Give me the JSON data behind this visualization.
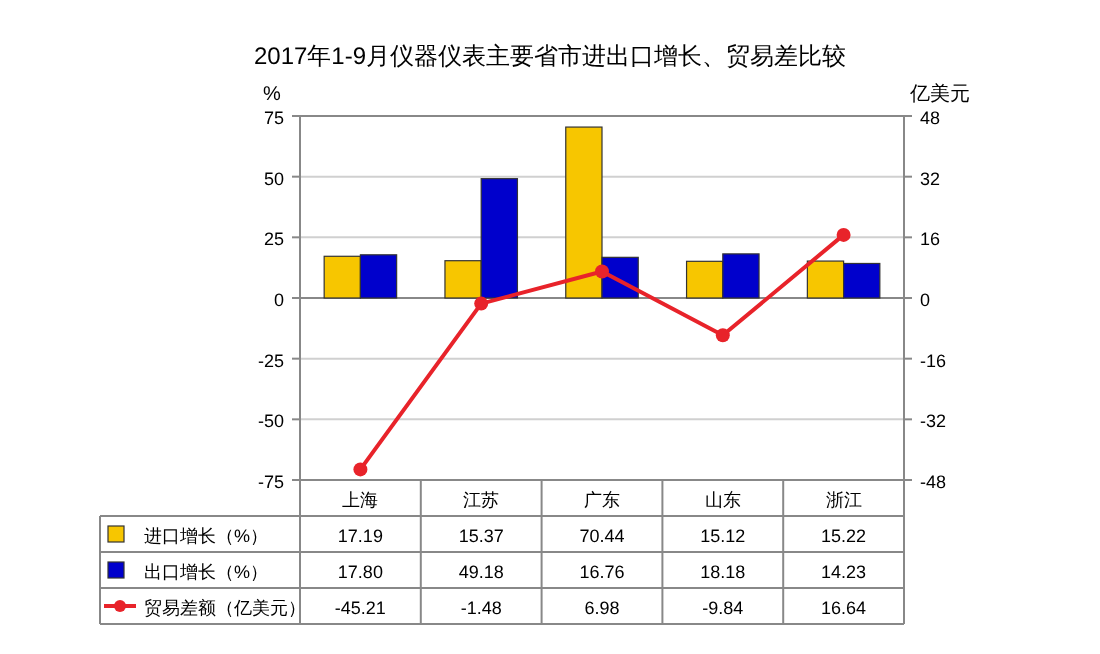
{
  "chart_data": {
    "type": "bar",
    "title": "2017年1-9月仪器仪表主要省市进出口增长、贸易差比较",
    "ylabel": "%",
    "y2label": "亿美元",
    "categories": [
      "上海",
      "江苏",
      "广东",
      "山东",
      "浙江"
    ],
    "series": [
      {
        "name": "进口增长（%）",
        "color": "#f7c600",
        "values": [
          17.19,
          15.37,
          70.44,
          15.12,
          15.22
        ],
        "value_labels": [
          "17.19",
          "15.37",
          "70.44",
          "15.12",
          "15.22"
        ]
      },
      {
        "name": "出口增长（%）",
        "color": "#0000cc",
        "values": [
          17.8,
          49.18,
          16.76,
          18.18,
          14.23
        ],
        "value_labels": [
          "17.80",
          "49.18",
          "16.76",
          "18.18",
          "14.23"
        ]
      },
      {
        "name": "贸易差额（亿美元）",
        "type": "line",
        "axis": "y2",
        "color": "#e8232a",
        "marker": "circle",
        "values": [
          -45.21,
          -1.48,
          6.98,
          -9.84,
          16.64
        ],
        "value_labels": [
          "-45.21",
          "-1.48",
          "6.98",
          "-9.84",
          "16.64"
        ]
      }
    ],
    "ylim": [
      -75,
      75
    ],
    "yticks": [
      -75,
      -50,
      -25,
      0,
      25,
      50,
      75
    ],
    "y2lim": [
      -48,
      48
    ],
    "y2ticks": [
      -48,
      -32,
      -16,
      0,
      16,
      32,
      48
    ],
    "grid": "y",
    "legend": "bottom"
  }
}
